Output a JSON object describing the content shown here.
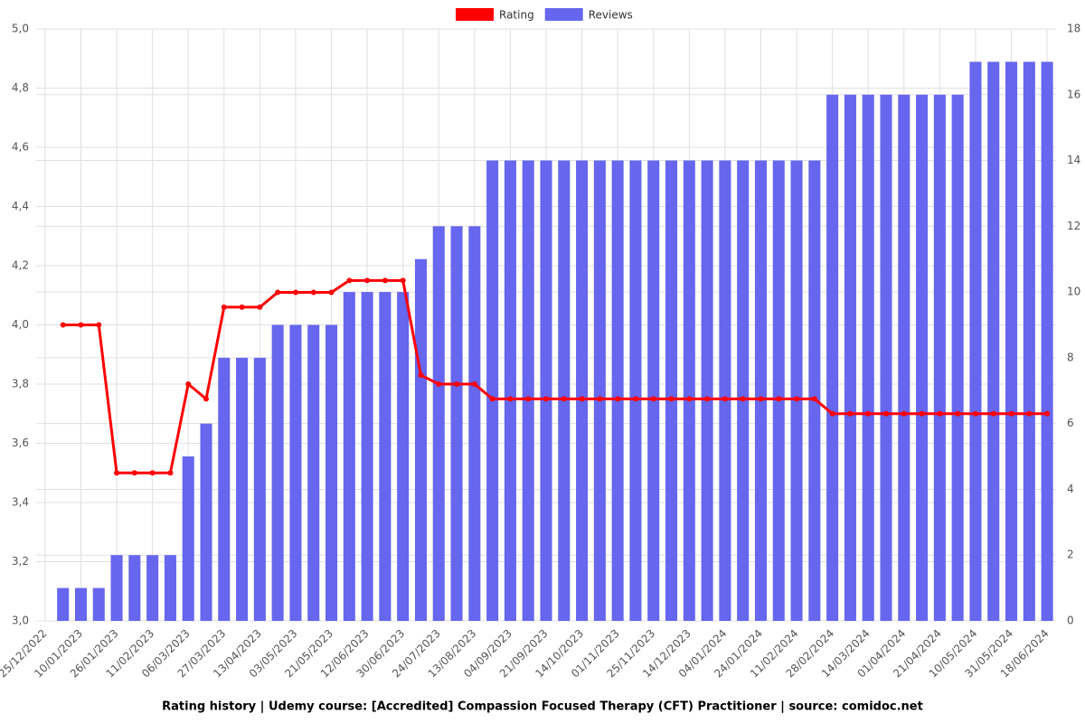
{
  "chart_data": {
    "type": "bar",
    "title": "Rating history | Udemy course: [Accredited] Compassion Focused Therapy (CFT) Practitioner | source: comidoc.net",
    "categories": [
      "25/12/2022",
      null,
      "10/01/2023",
      null,
      "26/01/2023",
      null,
      "11/02/2023",
      null,
      "06/03/2023",
      null,
      "27/03/2023",
      null,
      "13/04/2023",
      null,
      "03/05/2023",
      null,
      "21/05/2023",
      null,
      "12/06/2023",
      null,
      "30/06/2023",
      null,
      "24/07/2023",
      null,
      "13/08/2023",
      null,
      "04/09/2023",
      null,
      "21/09/2023",
      null,
      "14/10/2023",
      null,
      "01/11/2023",
      null,
      "25/11/2023",
      null,
      "14/12/2023",
      null,
      "04/01/2024",
      null,
      "24/01/2024",
      null,
      "11/02/2024",
      null,
      "28/02/2024",
      null,
      "14/03/2024",
      null,
      "01/04/2024",
      null,
      "21/04/2024",
      null,
      "10/05/2024",
      null,
      "31/05/2024",
      null,
      "18/06/2024"
    ],
    "series": [
      {
        "name": "Rating",
        "type": "line",
        "axis": "y",
        "color": "#ff0000",
        "values": [
          null,
          4.0,
          4.0,
          4.0,
          3.5,
          3.5,
          3.5,
          3.5,
          3.8,
          3.75,
          4.06,
          4.06,
          4.06,
          4.11,
          4.11,
          4.11,
          4.11,
          4.15,
          4.15,
          4.15,
          4.15,
          3.83,
          3.8,
          3.8,
          3.8,
          3.75,
          3.75,
          3.75,
          3.75,
          3.75,
          3.75,
          3.75,
          3.75,
          3.75,
          3.75,
          3.75,
          3.75,
          3.75,
          3.75,
          3.75,
          3.75,
          3.75,
          3.75,
          3.75,
          3.7,
          3.7,
          3.7,
          3.7,
          3.7,
          3.7,
          3.7,
          3.7,
          3.7,
          3.7,
          3.7,
          3.7,
          3.7
        ]
      },
      {
        "name": "Reviews",
        "type": "bar",
        "axis": "y2",
        "color": "#6666ee",
        "values": [
          0,
          1,
          1,
          1,
          2,
          2,
          2,
          2,
          5,
          6,
          8,
          8,
          8,
          9,
          9,
          9,
          9,
          10,
          10,
          10,
          10,
          11,
          12,
          12,
          12,
          14,
          14,
          14,
          14,
          14,
          14,
          14,
          14,
          14,
          14,
          14,
          14,
          14,
          14,
          14,
          14,
          14,
          14,
          14,
          16,
          16,
          16,
          16,
          16,
          16,
          16,
          16,
          17,
          17,
          17,
          17,
          17
        ]
      }
    ],
    "ylim": [
      3.0,
      5.0
    ],
    "yticks": [
      {
        "value": 3.0,
        "label": "3,0"
      },
      {
        "value": 3.2,
        "label": "3,2"
      },
      {
        "value": 3.4,
        "label": "3,4"
      },
      {
        "value": 3.6,
        "label": "3,6"
      },
      {
        "value": 3.8,
        "label": "3,8"
      },
      {
        "value": 4.0,
        "label": "4,0"
      },
      {
        "value": 4.2,
        "label": "4,2"
      },
      {
        "value": 4.4,
        "label": "4,4"
      },
      {
        "value": 4.6,
        "label": "4,6"
      },
      {
        "value": 4.8,
        "label": "4,8"
      },
      {
        "value": 5.0,
        "label": "5,0"
      }
    ],
    "y2lim": [
      0,
      18
    ],
    "y2ticks": [
      0,
      2,
      4,
      6,
      8,
      10,
      12,
      14,
      16,
      18
    ],
    "grid": true
  }
}
